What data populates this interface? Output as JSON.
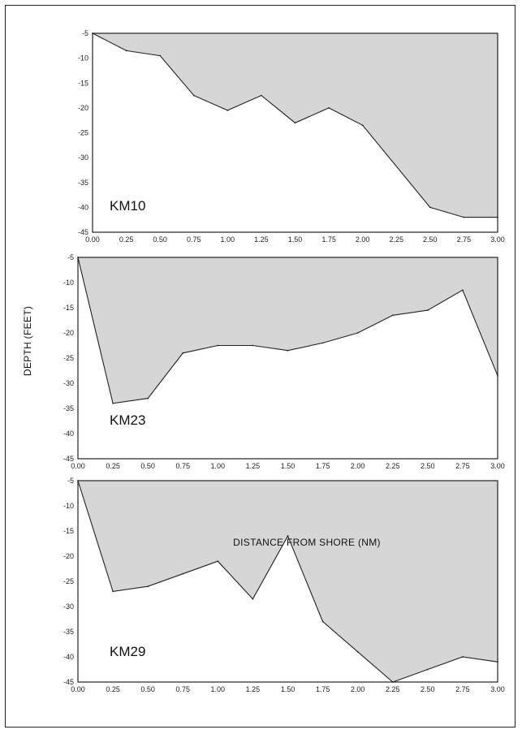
{
  "colors": {
    "fill": "#d6d6d6",
    "line": "#222222",
    "background": "#ffffff"
  },
  "figure": {
    "ylabel": "DEPTH  (FEET)",
    "xlabel": "DISTANCE FROM SHORE (NM)"
  },
  "chart_data": [
    {
      "type": "area",
      "site_label": "KM10",
      "x": [
        0.0,
        0.25,
        0.5,
        0.75,
        1.0,
        1.25,
        1.5,
        1.75,
        2.0,
        2.5,
        2.75,
        3.0
      ],
      "y": [
        -5,
        -8.5,
        -9.5,
        -17.5,
        -20.5,
        -17.5,
        -23,
        -20,
        -23.5,
        -40,
        -42,
        -42
      ],
      "xlim": [
        0,
        3
      ],
      "ylim": [
        -45,
        -5
      ],
      "x_ticks": [
        "0.00",
        "0.25",
        "0.50",
        "0.75",
        "1.00",
        "1.25",
        "1.50",
        "1.75",
        "2.00",
        "2.25",
        "2.50",
        "2.75",
        "3.00"
      ],
      "y_ticks": [
        "-5",
        "-10",
        "-15",
        "-20",
        "-25",
        "-30",
        "-35",
        "-40",
        "-45"
      ]
    },
    {
      "type": "area",
      "site_label": "KM23",
      "x": [
        0.0,
        0.25,
        0.5,
        0.75,
        1.0,
        1.25,
        1.5,
        1.75,
        2.0,
        2.25,
        2.5,
        2.75,
        3.0
      ],
      "y": [
        -5,
        -34,
        -33,
        -24,
        -22.5,
        -22.5,
        -23.5,
        -22,
        -20,
        -16.5,
        -15.5,
        -11.5,
        -28.5
      ],
      "xlim": [
        0,
        3
      ],
      "ylim": [
        -45,
        -5
      ],
      "x_ticks": [
        "0.00",
        "0.25",
        "0.50",
        "0.75",
        "1.00",
        "1.25",
        "1.50",
        "1.75",
        "2.00",
        "2.25",
        "2.50",
        "2.75",
        "3.00"
      ],
      "y_ticks": [
        "-5",
        "-10",
        "-15",
        "-20",
        "-25",
        "-30",
        "-35",
        "-40",
        "-45"
      ]
    },
    {
      "type": "area",
      "site_label": "KM29",
      "x": [
        0.0,
        0.25,
        0.5,
        0.75,
        1.0,
        1.25,
        1.5,
        1.75,
        2.0,
        2.25,
        2.5,
        2.75,
        3.0
      ],
      "y": [
        -5,
        -27,
        -26,
        -23.5,
        -21,
        -28.5,
        -16,
        -33,
        -39,
        -45,
        -42.5,
        -40,
        -41
      ],
      "xlim": [
        0,
        3
      ],
      "ylim": [
        -45,
        -5
      ],
      "x_ticks": [
        "0.00",
        "0.25",
        "0.50",
        "0.75",
        "1.00",
        "1.25",
        "1.50",
        "1.75",
        "2.00",
        "2.25",
        "2.50",
        "2.75",
        "3.00"
      ],
      "y_ticks": [
        "-5",
        "-10",
        "-15",
        "-20",
        "-25",
        "-30",
        "-35",
        "-40",
        "-45"
      ]
    }
  ]
}
